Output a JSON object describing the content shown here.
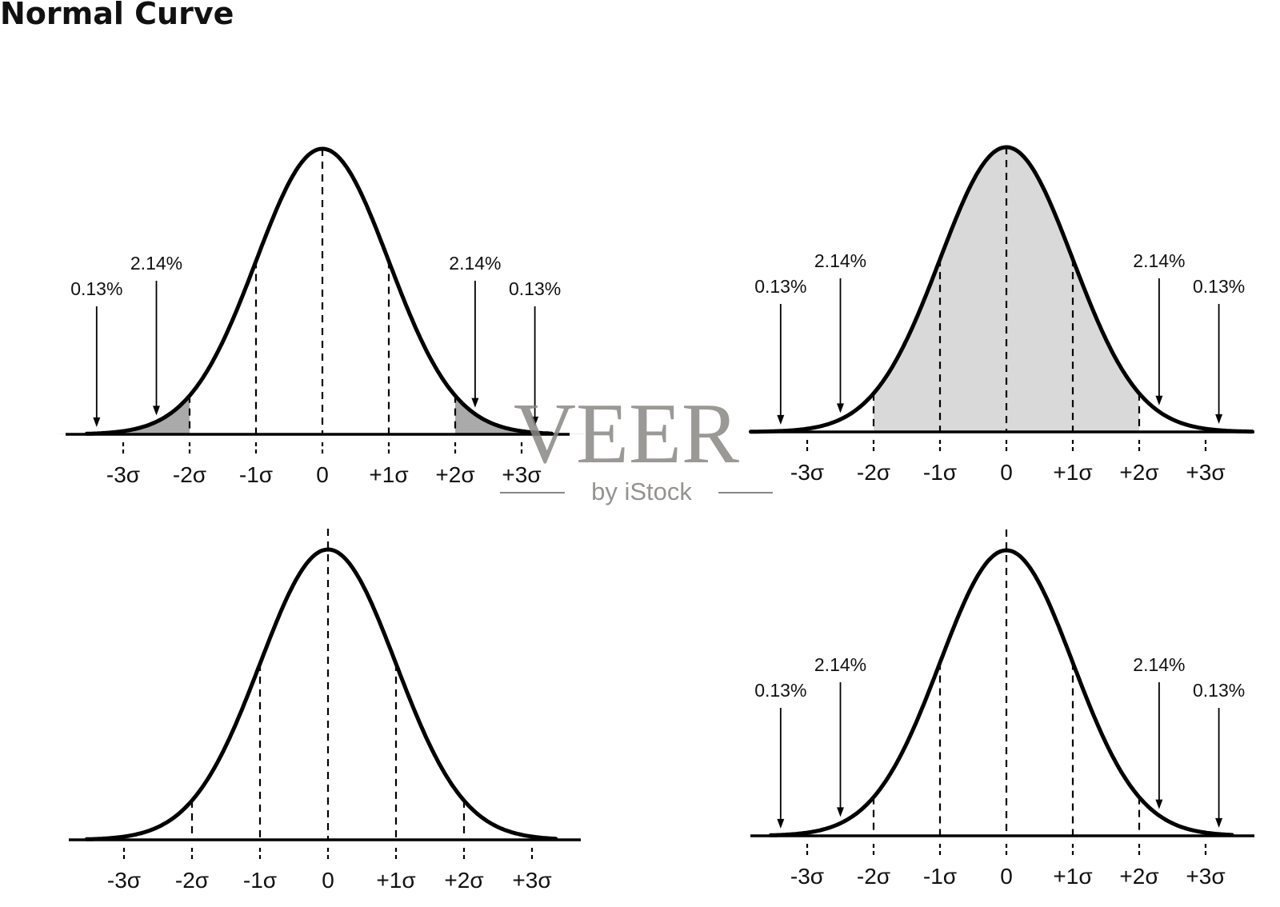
{
  "title": "Normal Curve",
  "tick_labels": [
    "-3σ",
    "-2σ",
    "-1σ",
    "0",
    "+1σ",
    "+2σ",
    "+3σ"
  ],
  "colors": {
    "curve": "#000000",
    "tail_shade": "#aaaaaa",
    "central_shade": "#d9d9d9"
  },
  "panels": [
    {
      "name": "top-left",
      "shading": "tails-beyond-2-sigma",
      "annotations": [
        {
          "label": "0.13%",
          "at_sigma": -3.4
        },
        {
          "label": "2.14%",
          "at_sigma": -2.5
        },
        {
          "label": "2.14%",
          "at_sigma": 2.3
        },
        {
          "label": "0.13%",
          "at_sigma": 3.2
        }
      ]
    },
    {
      "name": "top-right",
      "shading": "center-within-2-sigma",
      "annotations": [
        {
          "label": "0.13%",
          "at_sigma": -3.4
        },
        {
          "label": "2.14%",
          "at_sigma": -2.5
        },
        {
          "label": "2.14%",
          "at_sigma": 2.3
        },
        {
          "label": "0.13%",
          "at_sigma": 3.2
        }
      ]
    },
    {
      "name": "bottom-left",
      "shading": "none",
      "annotations": []
    },
    {
      "name": "bottom-right",
      "shading": "none",
      "annotations": [
        {
          "label": "0.13%",
          "at_sigma": -3.4
        },
        {
          "label": "2.14%",
          "at_sigma": -2.5
        },
        {
          "label": "2.14%",
          "at_sigma": 2.3
        },
        {
          "label": "0.13%",
          "at_sigma": 3.2
        }
      ]
    }
  ],
  "watermark": {
    "main": "VEER",
    "sub": "by iStock"
  }
}
